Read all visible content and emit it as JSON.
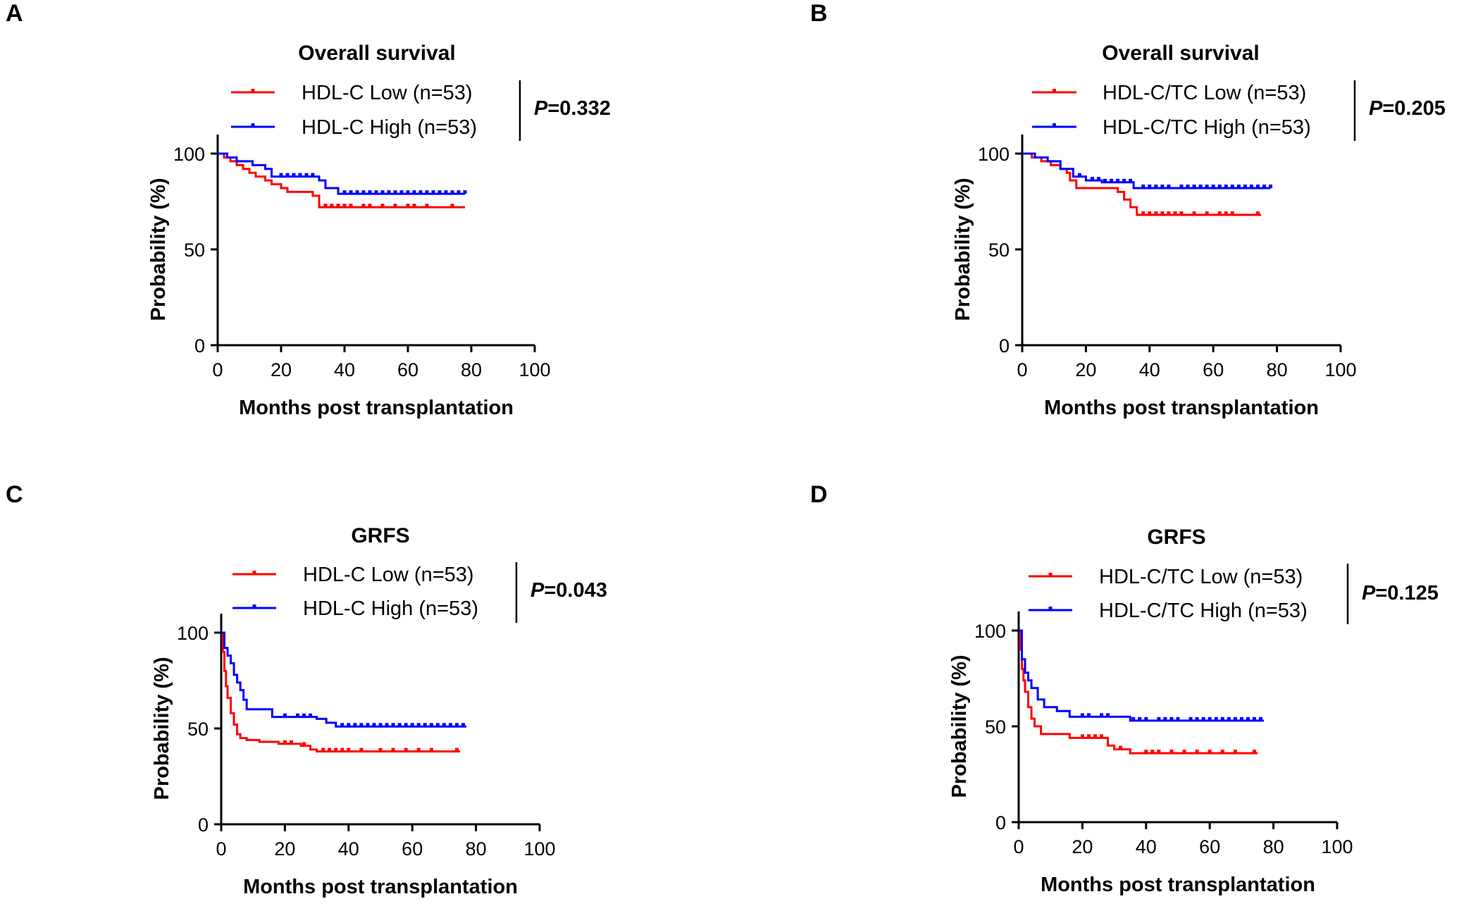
{
  "chart_data": [
    {
      "panel": "A",
      "type": "line",
      "title": "Overall survival",
      "xlabel": "Months post transplantation",
      "ylabel": "Probability (%)",
      "xlim": [
        0,
        100
      ],
      "ylim": [
        0,
        100
      ],
      "xticks": [
        "0",
        "20",
        "40",
        "60",
        "80",
        "100"
      ],
      "yticks": [
        "0",
        "50",
        "100"
      ],
      "p_prefix": "P",
      "p_value": "=0.332",
      "series": [
        {
          "name": "HDL-C Low (n=53)",
          "color": "#ff0000",
          "steps": [
            [
              0,
              100
            ],
            [
              2,
              98
            ],
            [
              4,
              96
            ],
            [
              6,
              94
            ],
            [
              8,
              92
            ],
            [
              10,
              90
            ],
            [
              12,
              88
            ],
            [
              15,
              86
            ],
            [
              17,
              84
            ],
            [
              20,
              82
            ],
            [
              22,
              80
            ],
            [
              30,
              78
            ],
            [
              32,
              72
            ],
            [
              78,
              72
            ]
          ],
          "censored": [
            34,
            36,
            38,
            40,
            42,
            46,
            48,
            52,
            56,
            60,
            62,
            66,
            74
          ]
        },
        {
          "name": "HDL-C High (n=53)",
          "color": "#0000ff",
          "steps": [
            [
              0,
              100
            ],
            [
              3,
              98
            ],
            [
              6,
              96
            ],
            [
              11,
              94
            ],
            [
              15,
              92
            ],
            [
              17,
              88
            ],
            [
              32,
              86
            ],
            [
              34,
              82
            ],
            [
              38,
              79
            ],
            [
              78,
              79
            ]
          ],
          "censored": [
            20,
            22,
            24,
            26,
            28,
            30,
            40,
            42,
            44,
            46,
            48,
            50,
            52,
            54,
            56,
            58,
            60,
            62,
            64,
            66,
            68,
            70,
            72,
            74,
            76,
            78
          ]
        }
      ]
    },
    {
      "panel": "B",
      "type": "line",
      "title": "Overall survival",
      "xlabel": "Months post transplantation",
      "ylabel": "Probability (%)",
      "xlim": [
        0,
        100
      ],
      "ylim": [
        0,
        100
      ],
      "xticks": [
        "0",
        "20",
        "40",
        "60",
        "80",
        "100"
      ],
      "yticks": [
        "0",
        "50",
        "100"
      ],
      "p_prefix": "P",
      "p_value": "=0.205",
      "series": [
        {
          "name": "HDL-C/TC Low (n=53)",
          "color": "#ff0000",
          "steps": [
            [
              0,
              100
            ],
            [
              3,
              98
            ],
            [
              6,
              96
            ],
            [
              9,
              94
            ],
            [
              12,
              92
            ],
            [
              14,
              90
            ],
            [
              15,
              86
            ],
            [
              17,
              82
            ],
            [
              30,
              80
            ],
            [
              32,
              76
            ],
            [
              34,
              72
            ],
            [
              36,
              68
            ],
            [
              75,
              68
            ]
          ],
          "censored": [
            38,
            40,
            42,
            44,
            46,
            48,
            50,
            54,
            58,
            62,
            64,
            66,
            74
          ]
        },
        {
          "name": "HDL-C/TC High (n=53)",
          "color": "#0000ff",
          "steps": [
            [
              0,
              100
            ],
            [
              4,
              98
            ],
            [
              8,
              96
            ],
            [
              12,
              92
            ],
            [
              16,
              88
            ],
            [
              20,
              86
            ],
            [
              25,
              85
            ],
            [
              35,
              82
            ],
            [
              78,
              82
            ]
          ],
          "censored": [
            18,
            22,
            24,
            26,
            28,
            30,
            32,
            34,
            38,
            40,
            42,
            44,
            46,
            50,
            52,
            54,
            56,
            58,
            60,
            62,
            64,
            66,
            68,
            70,
            72,
            74,
            76,
            78
          ]
        }
      ]
    },
    {
      "panel": "C",
      "type": "line",
      "title": "GRFS",
      "xlabel": "Months post transplantation",
      "ylabel": "Probability (%)",
      "xlim": [
        0,
        100
      ],
      "ylim": [
        0,
        100
      ],
      "xticks": [
        "0",
        "20",
        "40",
        "60",
        "80",
        "100"
      ],
      "yticks": [
        "0",
        "50",
        "100"
      ],
      "p_prefix": "P",
      "p_value": "=0.043",
      "series": [
        {
          "name": "HDL-C Low (n=53)",
          "color": "#ff0000",
          "steps": [
            [
              0,
              100
            ],
            [
              0.5,
              90
            ],
            [
              1,
              80
            ],
            [
              1.5,
              72
            ],
            [
              2,
              66
            ],
            [
              3,
              58
            ],
            [
              4,
              52
            ],
            [
              5,
              47
            ],
            [
              6,
              45
            ],
            [
              8,
              44
            ],
            [
              12,
              43
            ],
            [
              18,
              42
            ],
            [
              25,
              41
            ],
            [
              28,
              39
            ],
            [
              30,
              38
            ],
            [
              75,
              38
            ]
          ],
          "censored": [
            20,
            22,
            26,
            32,
            34,
            36,
            38,
            40,
            44,
            50,
            54,
            58,
            62,
            66,
            74
          ]
        },
        {
          "name": "HDL-C High (n=53)",
          "color": "#0000ff",
          "steps": [
            [
              0,
              100
            ],
            [
              1,
              92
            ],
            [
              2,
              88
            ],
            [
              3,
              84
            ],
            [
              4,
              78
            ],
            [
              5,
              74
            ],
            [
              6,
              70
            ],
            [
              7,
              65
            ],
            [
              8,
              60
            ],
            [
              16,
              56
            ],
            [
              30,
              55
            ],
            [
              33,
              53
            ],
            [
              36,
              51
            ],
            [
              77,
              51
            ]
          ],
          "censored": [
            20,
            24,
            26,
            28,
            38,
            40,
            42,
            44,
            46,
            48,
            50,
            52,
            54,
            56,
            58,
            60,
            62,
            64,
            66,
            68,
            70,
            72,
            74,
            76
          ]
        }
      ]
    },
    {
      "panel": "D",
      "type": "line",
      "title": "GRFS",
      "xlabel": "Months post transplantation",
      "ylabel": "Probability (%)",
      "xlim": [
        0,
        100
      ],
      "ylim": [
        0,
        100
      ],
      "xticks": [
        "0",
        "20",
        "40",
        "60",
        "80",
        "100"
      ],
      "yticks": [
        "0",
        "50",
        "100"
      ],
      "p_prefix": "P",
      "p_value": "=0.125",
      "series": [
        {
          "name": "HDL-C/TC Low (n=53)",
          "color": "#ff0000",
          "steps": [
            [
              0,
              100
            ],
            [
              0.5,
              90
            ],
            [
              1,
              80
            ],
            [
              1.5,
              74
            ],
            [
              2,
              68
            ],
            [
              3,
              60
            ],
            [
              4,
              54
            ],
            [
              5,
              50
            ],
            [
              7,
              46
            ],
            [
              16,
              44
            ],
            [
              28,
              40
            ],
            [
              30,
              38
            ],
            [
              35,
              36
            ],
            [
              75,
              36
            ]
          ],
          "censored": [
            20,
            22,
            24,
            26,
            32,
            40,
            42,
            44,
            48,
            52,
            56,
            60,
            64,
            68,
            74
          ]
        },
        {
          "name": "HDL-C/TC High (n=53)",
          "color": "#0000ff",
          "steps": [
            [
              0,
              100
            ],
            [
              1,
              85
            ],
            [
              2,
              78
            ],
            [
              3,
              74
            ],
            [
              4,
              70
            ],
            [
              6,
              64
            ],
            [
              8,
              60
            ],
            [
              12,
              58
            ],
            [
              16,
              55
            ],
            [
              35,
              53
            ],
            [
              77,
              53
            ]
          ],
          "censored": [
            20,
            22,
            26,
            28,
            36,
            38,
            40,
            44,
            46,
            48,
            50,
            54,
            56,
            58,
            60,
            62,
            64,
            66,
            68,
            70,
            72,
            74,
            76
          ]
        }
      ]
    }
  ]
}
